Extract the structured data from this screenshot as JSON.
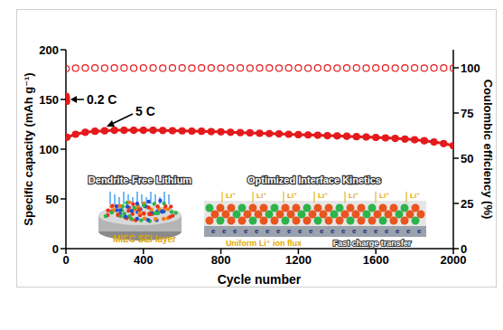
{
  "chart_data": {
    "type": "scatter",
    "xlabel": "Cycle number",
    "ylabel": "Specific capacity (mAh g⁻¹)",
    "y2label": "Coulombic efficiency (%)",
    "xlim": [
      0,
      2000
    ],
    "xticks": [
      0,
      400,
      800,
      1200,
      1600,
      2000
    ],
    "ylim": [
      0,
      200
    ],
    "yticks": [
      0,
      50,
      100,
      150,
      200
    ],
    "y2lim": [
      0,
      110
    ],
    "y2ticks": [
      0,
      25,
      50,
      75,
      100
    ],
    "grid": false,
    "series": [
      {
        "name": "0.2 C",
        "color": "#e41a1c",
        "marker": "circle",
        "x": [
          1,
          2,
          3
        ],
        "values": [
          153,
          151,
          148
        ]
      },
      {
        "name": "5 C",
        "color": "#e41a1c",
        "marker": "circle",
        "line_style": "solid",
        "x": [
          5,
          50,
          100,
          150,
          200,
          250,
          300,
          350,
          400,
          450,
          500,
          550,
          600,
          650,
          700,
          750,
          800,
          850,
          900,
          950,
          1000,
          1050,
          1100,
          1150,
          1200,
          1250,
          1300,
          1350,
          1400,
          1450,
          1500,
          1550,
          1600,
          1650,
          1700,
          1750,
          1800,
          1850,
          1900,
          1950,
          2000
        ],
        "values": [
          112,
          115,
          117,
          118,
          118.5,
          119,
          119,
          119,
          119,
          119,
          118.8,
          118.6,
          118.4,
          118.2,
          118,
          117.7,
          117.4,
          117,
          116.7,
          116.4,
          116,
          115.7,
          115.4,
          115,
          114.6,
          114.3,
          114,
          113.6,
          113.3,
          113,
          112.6,
          112.2,
          111.8,
          111.3,
          110.8,
          110.2,
          109.5,
          108.5,
          107.2,
          105.6,
          103.5
        ]
      },
      {
        "color": "#e41a1c",
        "marker": "open_circle",
        "axis": "y2",
        "x": [
          1,
          50,
          100,
          150,
          200,
          250,
          300,
          350,
          400,
          450,
          500,
          550,
          600,
          650,
          700,
          750,
          800,
          850,
          900,
          950,
          1000,
          1050,
          1100,
          1150,
          1200,
          1250,
          1300,
          1350,
          1400,
          1450,
          1500,
          1550,
          1600,
          1650,
          1700,
          1750,
          1800,
          1850,
          1900,
          1950,
          2000
        ],
        "values": [
          99.5,
          99.8,
          99.9,
          99.9,
          99.8,
          99.9,
          99.9,
          99.8,
          99.9,
          99.9,
          99.8,
          99.9,
          99.9,
          99.8,
          99.9,
          99.9,
          99.8,
          99.9,
          99.9,
          99.8,
          99.9,
          99.9,
          99.8,
          99.9,
          99.9,
          99.8,
          99.9,
          99.9,
          99.8,
          99.9,
          99.9,
          99.8,
          99.9,
          99.9,
          99.8,
          99.9,
          99.9,
          99.8,
          99.9,
          99.9,
          99.8
        ]
      }
    ],
    "inset": {
      "left": {
        "title": "Dendrite-Free Lithium",
        "label": "MIEC SEI layer"
      },
      "right": {
        "title": "Optimized Interface Kinetics",
        "labels": [
          "Uniform Li⁺ ion flux",
          "Fast charge transfer"
        ],
        "ion": "Li⁺",
        "electron": "e"
      }
    }
  }
}
